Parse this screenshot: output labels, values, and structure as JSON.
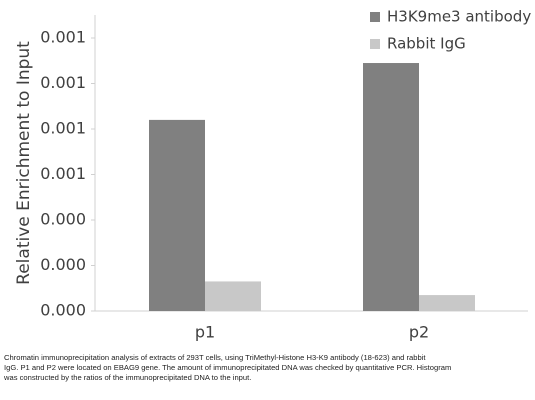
{
  "chart_data": {
    "type": "bar",
    "y_label": "Relative Enrichment to Input",
    "categories": [
      "p1",
      "p2"
    ],
    "series": [
      {
        "name": "H3K9me3 antibody",
        "color": "#808080",
        "values": [
          0.00084,
          0.00109
        ]
      },
      {
        "name": "Rabbit IgG",
        "color": "#c8c8c8",
        "values": [
          0.00013,
          7e-05
        ]
      }
    ],
    "ylim": [
      0,
      0.0013
    ],
    "yticks": [
      {
        "value": 0,
        "label": "0.000"
      },
      {
        "value": 0.0002,
        "label": "0.000"
      },
      {
        "value": 0.0004,
        "label": "0.000"
      },
      {
        "value": 0.0006,
        "label": "0.001"
      },
      {
        "value": 0.0008,
        "label": "0.001"
      },
      {
        "value": 0.001,
        "label": "0.001"
      },
      {
        "value": 0.0012,
        "label": "0.001"
      }
    ],
    "legend": "top-right",
    "caption": [
      "Chromatin immunoprecipitation analysis of extracts of 293T cells, using TriMethyl-Histone H3-K9 antibody (18-623) and rabbit",
      "IgG. P1 and P2 were located on EBAG9 gene. The amount of immunoprecipitated DNA was checked by quantitative PCR. Histogram",
      "was constructed by the ratios of the immunoprecipitated DNA to the input."
    ]
  }
}
